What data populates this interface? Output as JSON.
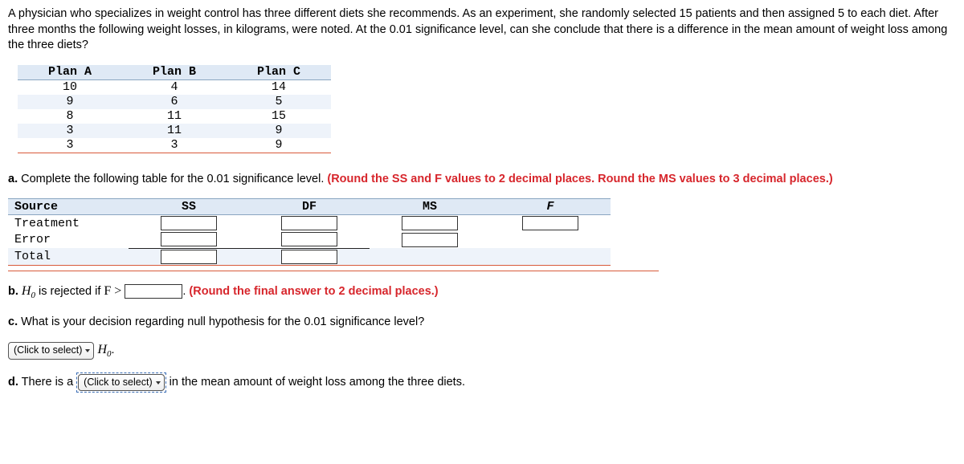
{
  "question": "A physician who specializes in weight control has three different diets she recommends. As an experiment, she randomly selected 15 patients and then assigned 5 to each diet. After three months the following weight losses, in kilograms, were noted. At the 0.01 significance level, can she conclude that there is a difference in the mean amount of weight loss among the three diets?",
  "data_table": {
    "headers": [
      "Plan A",
      "Plan B",
      "Plan C"
    ],
    "rows": [
      [
        "10",
        "4",
        "14"
      ],
      [
        "9",
        "6",
        "5"
      ],
      [
        "8",
        "11",
        "15"
      ],
      [
        "3",
        "11",
        "9"
      ],
      [
        "3",
        "3",
        "9"
      ]
    ]
  },
  "part_a": {
    "label": "a.",
    "text": " Complete the following table for the 0.01 significance level. ",
    "hint": "(Round the SS and F values to 2 decimal places. Round the MS values to 3 decimal places.)"
  },
  "anova": {
    "headers": [
      "Source",
      "SS",
      "DF",
      "MS",
      "F"
    ],
    "rows": [
      "Treatment",
      "Error",
      "Total"
    ]
  },
  "part_b": {
    "label": "b.",
    "prefix": " is rejected if ",
    "f_gt": "F >",
    "period": ". ",
    "hint": "(Round the final answer to 2 decimal places.)"
  },
  "part_c": {
    "label": "c.",
    "text": " What is your decision regarding null hypothesis for the 0.01 significance level?"
  },
  "part_d": {
    "label": "d.",
    "prefix": " There is a ",
    "suffix": " in the mean amount of weight loss among the three diets."
  },
  "select_label": "(Click to select)",
  "h0": "H",
  "zero": "0",
  "dot": "."
}
